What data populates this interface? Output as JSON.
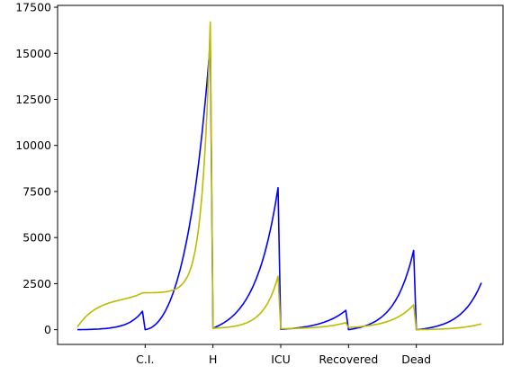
{
  "chart_data": {
    "type": "line",
    "title": "",
    "xlabel": "",
    "ylabel": "",
    "ylim": [
      -800,
      17600
    ],
    "y_ticks": [
      0,
      2500,
      5000,
      7500,
      10000,
      12500,
      15000,
      17500
    ],
    "y_tick_labels": [
      "0",
      "2500",
      "5000",
      "7500",
      "10000",
      "12500",
      "15000",
      "17500"
    ],
    "categories": [
      "C.I.",
      "H",
      "ICU",
      "Recovered",
      "Dead"
    ],
    "grid": false,
    "legend": "none",
    "segment_points": 40,
    "series": [
      {
        "color": "#0000ff",
        "segments": [
          {
            "start": 0,
            "peak": 1000,
            "growth": 4.6
          },
          {
            "start": 0,
            "peak": 15600,
            "growth": 3.8,
            "shape": "steep"
          },
          {
            "start": 80,
            "peak": 7700,
            "growth": 2.8
          },
          {
            "start": 20,
            "peak": 1050,
            "growth": 2.6
          },
          {
            "start": 0,
            "peak": 4300,
            "growth": 3.4
          },
          {
            "start": 0,
            "peak": 2550,
            "growth": 3.2
          }
        ]
      },
      {
        "color": "#bbbb00",
        "segments": [
          {
            "start": 150,
            "peak": 2000,
            "growth": 1.6,
            "shape": "sat"
          },
          {
            "start": 2000,
            "peak": 16700,
            "growth": 8.0,
            "shape": "spike"
          },
          {
            "start": 80,
            "peak": 2900,
            "growth": 4.5
          },
          {
            "start": 50,
            "peak": 380,
            "growth": 2.8
          },
          {
            "start": 120,
            "peak": 1350,
            "growth": 3.0
          },
          {
            "start": 0,
            "peak": 320,
            "growth": 3.0
          }
        ]
      }
    ]
  }
}
